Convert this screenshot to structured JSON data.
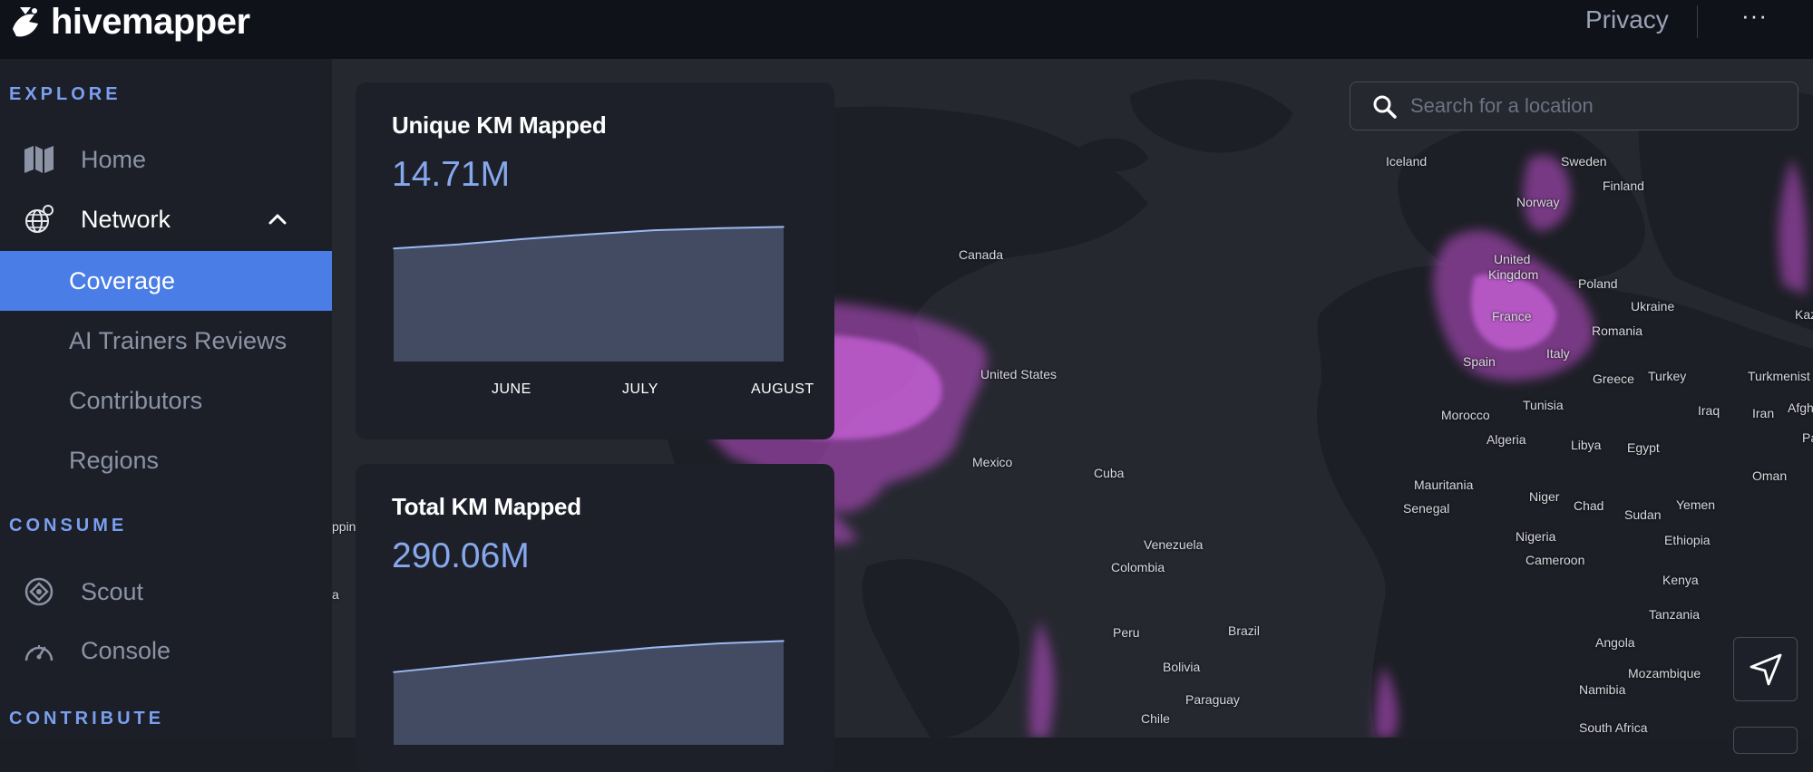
{
  "app": {
    "name": "hivemapper"
  },
  "header": {
    "privacy_label": "Privacy",
    "more_label": "···"
  },
  "sidebar": {
    "explore_label": "EXPLORE",
    "consume_label": "CONSUME",
    "contribute_label": "CONTRIBUTE",
    "home_label": "Home",
    "network_label": "Network",
    "network_children": [
      "Coverage",
      "AI Trainers Reviews",
      "Contributors",
      "Regions"
    ],
    "scout_label": "Scout",
    "console_label": "Console"
  },
  "search": {
    "placeholder": "Search for a location",
    "value": ""
  },
  "map_labels": [
    {
      "text": "Iceland"
    },
    {
      "text": "Sweden"
    },
    {
      "text": "Finland"
    },
    {
      "text": "Norway"
    },
    {
      "text": "United"
    },
    {
      "text": "Kingdom"
    },
    {
      "text": "Poland"
    },
    {
      "text": "Ukraine"
    },
    {
      "text": "Kaz"
    },
    {
      "text": "France"
    },
    {
      "text": "Romania"
    },
    {
      "text": "Italy"
    },
    {
      "text": "Spain"
    },
    {
      "text": "Greece"
    },
    {
      "text": "Turkey"
    },
    {
      "text": "Turkmenist"
    },
    {
      "text": "Afgh"
    },
    {
      "text": "Tunisia"
    },
    {
      "text": "Iraq"
    },
    {
      "text": "Iran"
    },
    {
      "text": "Pa"
    },
    {
      "text": "Morocco"
    },
    {
      "text": "Algeria"
    },
    {
      "text": "Libya"
    },
    {
      "text": "Egypt"
    },
    {
      "text": "Oman"
    },
    {
      "text": "Mauritania"
    },
    {
      "text": "Senegal"
    },
    {
      "text": "Niger"
    },
    {
      "text": "Chad"
    },
    {
      "text": "Sudan"
    },
    {
      "text": "Yemen"
    },
    {
      "text": "Nigeria"
    },
    {
      "text": "Ethiopia"
    },
    {
      "text": "Cameroon"
    },
    {
      "text": "Kenya"
    },
    {
      "text": "Tanzania"
    },
    {
      "text": "Angola"
    },
    {
      "text": "Mozambique"
    },
    {
      "text": "Namibia"
    },
    {
      "text": "South Africa"
    },
    {
      "text": "Canada"
    },
    {
      "text": "United States"
    },
    {
      "text": "Mexico"
    },
    {
      "text": "Cuba"
    },
    {
      "text": "Venezuela"
    },
    {
      "text": "Colombia"
    },
    {
      "text": "Peru"
    },
    {
      "text": "Brazil"
    },
    {
      "text": "Bolivia"
    },
    {
      "text": "Paraguay"
    },
    {
      "text": "Chile"
    },
    {
      "text": "ppin"
    },
    {
      "text": "a"
    }
  ],
  "chart_data": [
    {
      "type": "area",
      "title": "Unique KM Mapped",
      "headline": "14.71M",
      "categories": [
        "JUNE",
        "JULY",
        "AUGUST"
      ],
      "x": [
        0,
        1,
        2,
        3,
        4,
        5,
        6
      ],
      "values": [
        0.84,
        0.87,
        0.91,
        0.945,
        0.975,
        0.99,
        1.0
      ],
      "ylim": [
        0,
        1.05
      ],
      "colors": {
        "fill": "#434b63",
        "line": "#9cb8ef"
      }
    },
    {
      "type": "area",
      "title": "Total KM Mapped",
      "headline": "290.06M",
      "categories": [
        "JUNE",
        "JULY",
        "AUGUST"
      ],
      "x": [
        0,
        1,
        2,
        3,
        4,
        5,
        6
      ],
      "values": [
        0.62,
        0.66,
        0.7,
        0.735,
        0.77,
        0.795,
        0.81
      ],
      "ylim": [
        0,
        1.05
      ],
      "colors": {
        "fill": "#434b63",
        "line": "#9cb8ef"
      }
    }
  ],
  "colors": {
    "accent": "#4a7de6",
    "section": "#7b9ff0",
    "value": "#86a8ec",
    "coverage": "#c14fd0"
  }
}
